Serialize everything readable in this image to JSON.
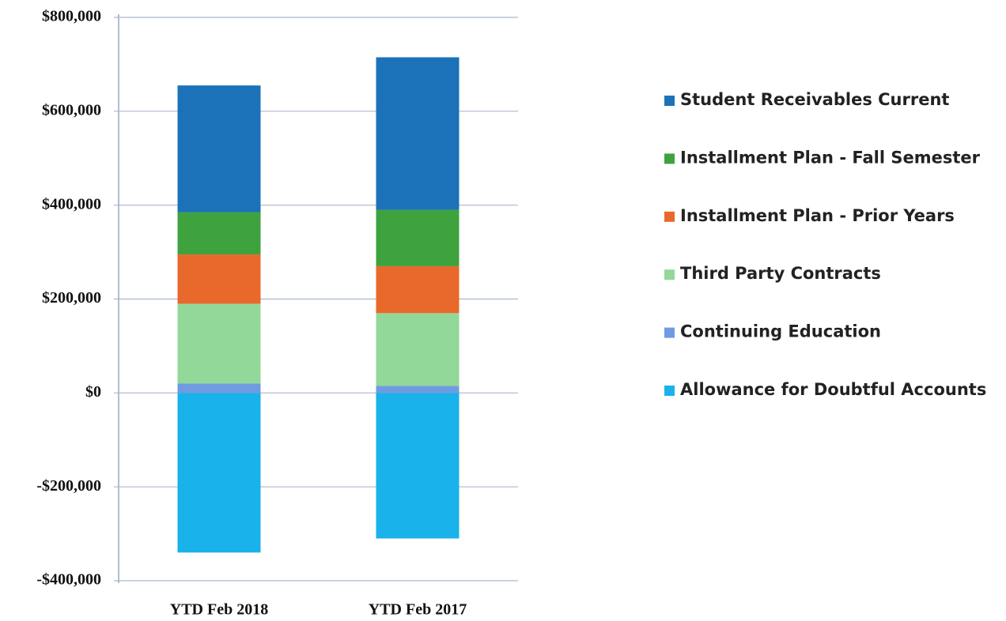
{
  "chart_data": {
    "type": "stacked_bar",
    "categories": [
      "YTD Feb 2018",
      "YTD Feb 2017"
    ],
    "series": [
      {
        "name": "Student Receivables Current",
        "color": "#1b72b8",
        "values": [
          270000,
          325000
        ]
      },
      {
        "name": "Installment Plan - Fall Semester",
        "color": "#3ea33e",
        "values": [
          90000,
          120000
        ]
      },
      {
        "name": "Installment Plan - Prior Years",
        "color": "#e8692b",
        "values": [
          105000,
          100000
        ]
      },
      {
        "name": "Third Party Contracts",
        "color": "#92d898",
        "values": [
          170000,
          155000
        ]
      },
      {
        "name": "Continuing Education",
        "color": "#6f9be0",
        "values": [
          20000,
          15000
        ]
      },
      {
        "name": "Allowance for Doubtful Accounts",
        "color": "#19b2ea",
        "values": [
          -340000,
          -310000
        ]
      }
    ],
    "ylim": [
      -400000,
      800000
    ],
    "yticks": [
      {
        "value": -400000,
        "label": "-$400,000"
      },
      {
        "value": -200000,
        "label": "-$200,000"
      },
      {
        "value": 0,
        "label": "$0"
      },
      {
        "value": 200000,
        "label": "$200,000"
      },
      {
        "value": 400000,
        "label": "$400,000"
      },
      {
        "value": 600000,
        "label": "$600,000"
      },
      {
        "value": 800000,
        "label": "$800,000"
      }
    ],
    "grid": true,
    "legend": "right"
  }
}
